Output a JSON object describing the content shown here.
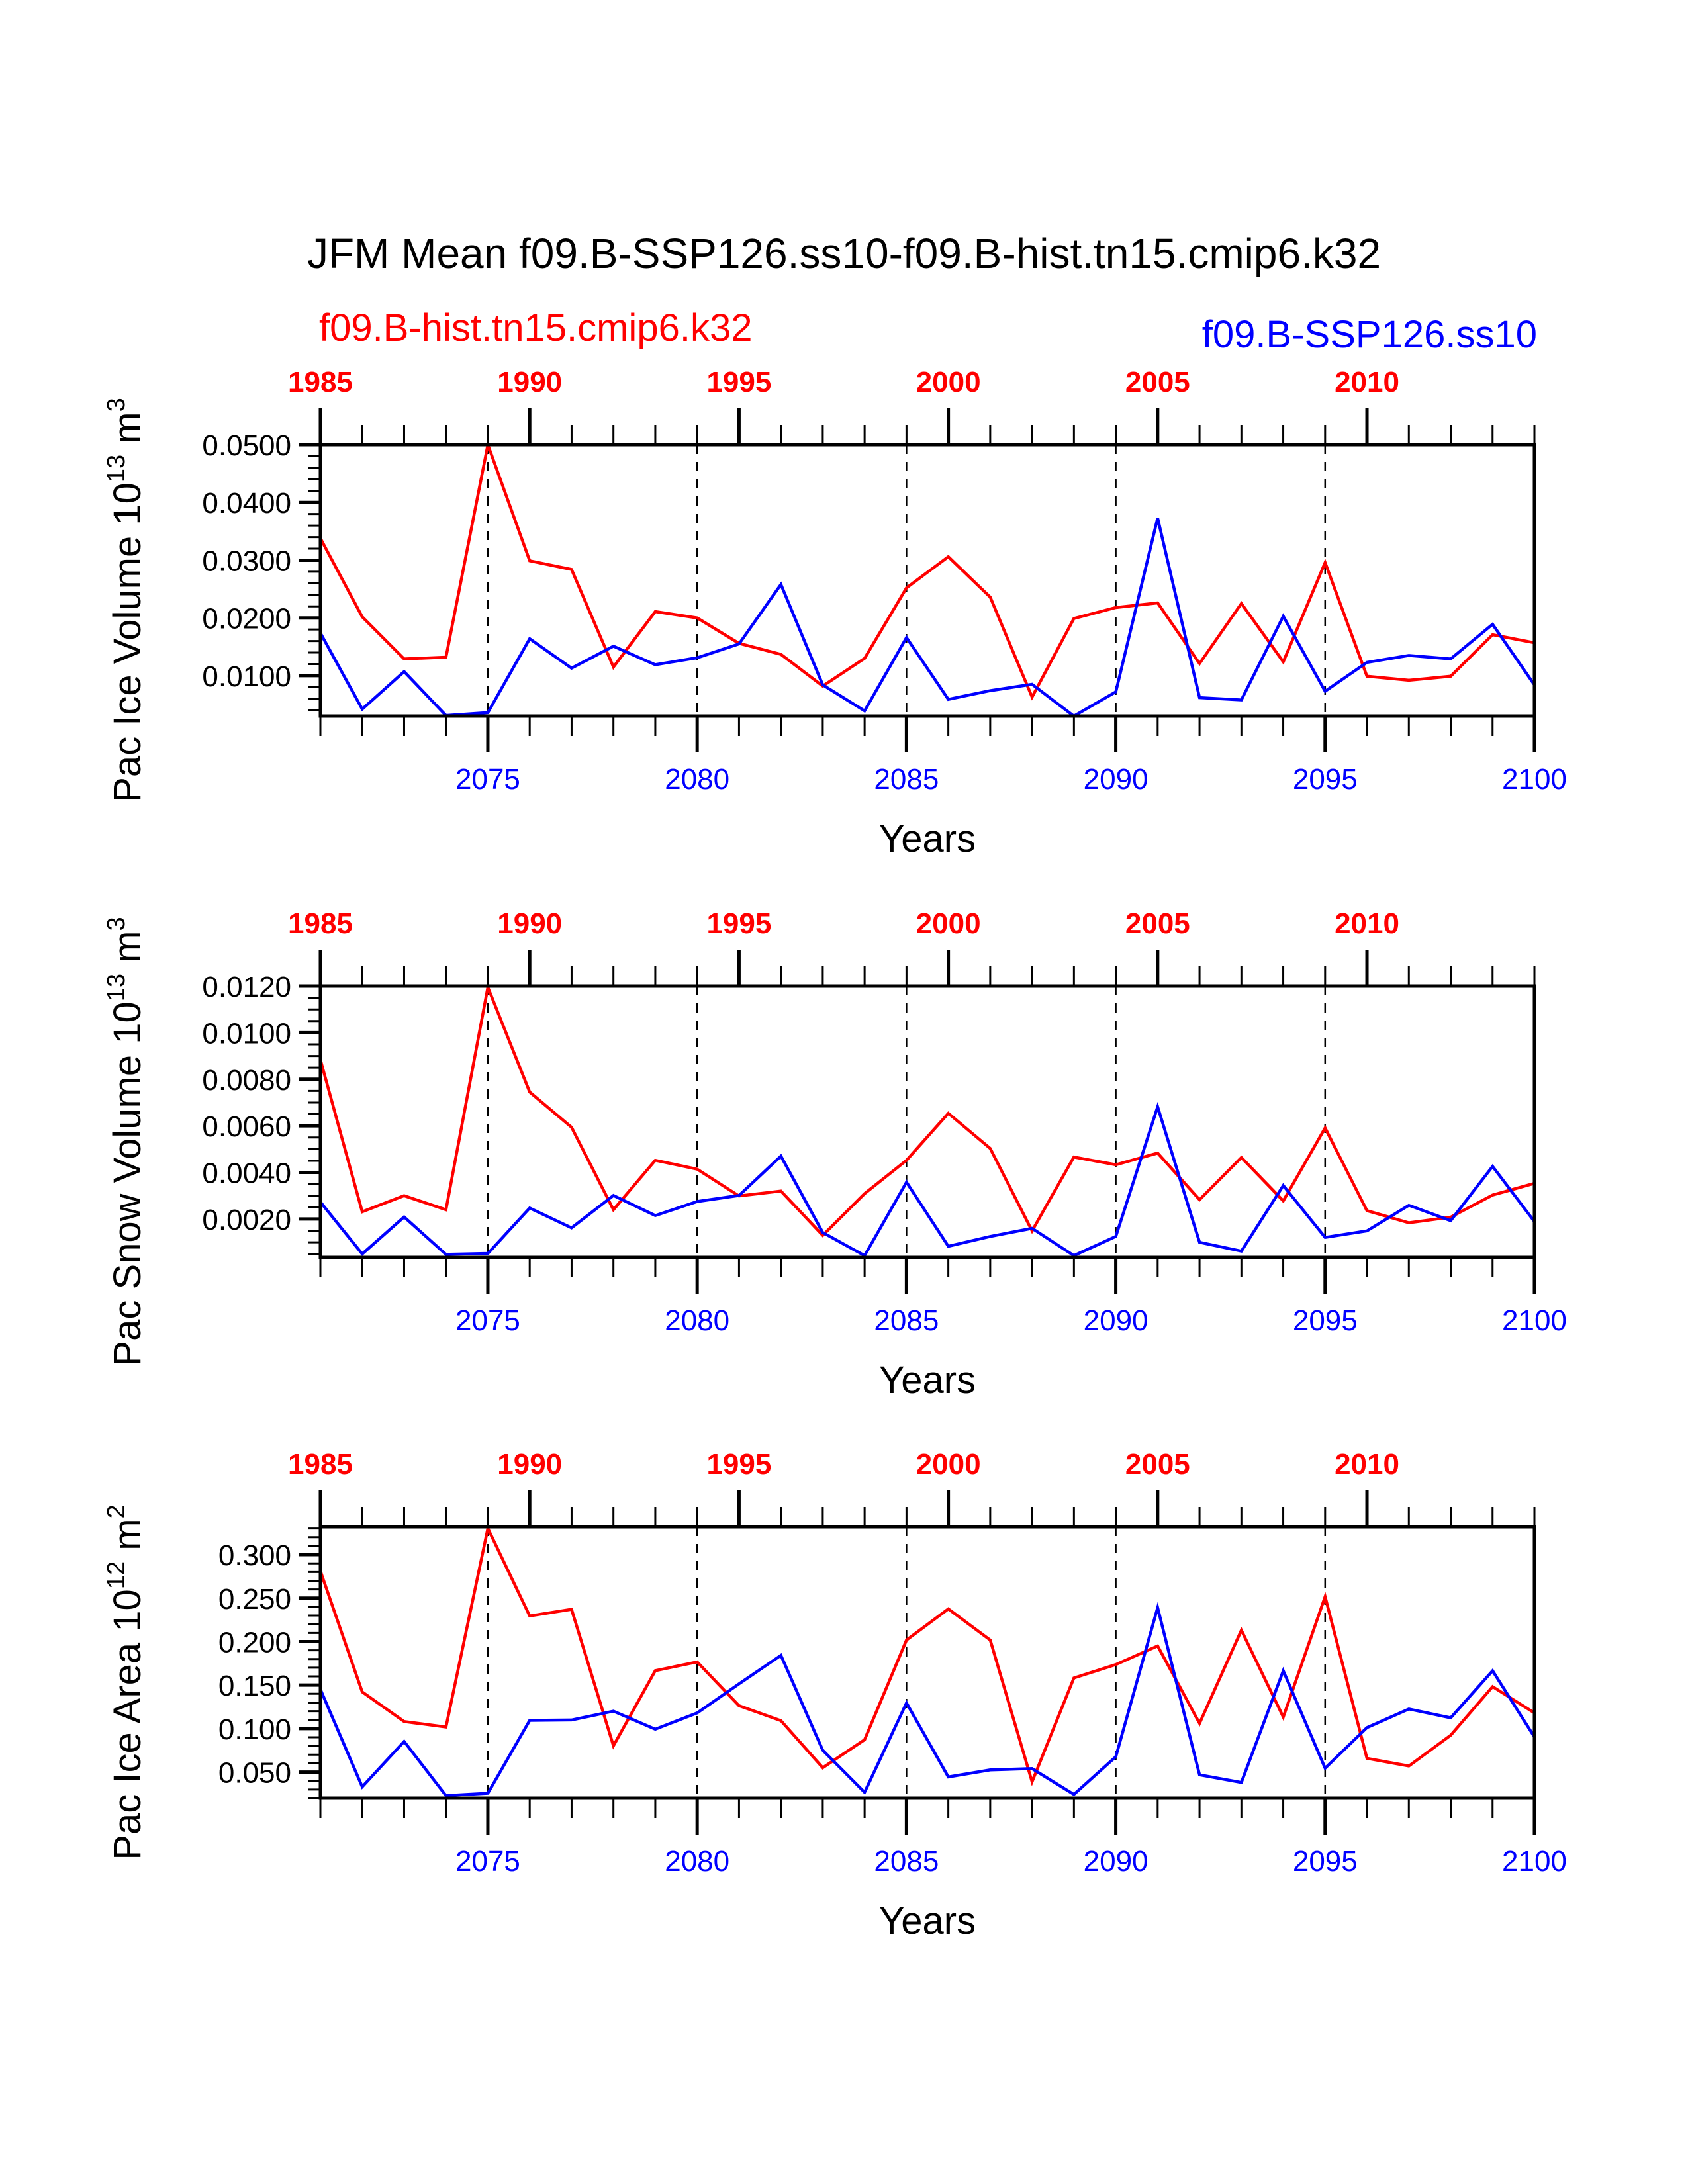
{
  "chart_data": {
    "title": "JFM Mean f09.B-SSP126.ss10-f09.B-hist.tn15.cmip6.k32",
    "legend": {
      "left_label": "f09.B-hist.tn15.cmip6.k32",
      "right_label": "f09.B-SSP126.ss10",
      "left_color": "#ff0000",
      "right_color": "#0000ff"
    },
    "panels": [
      {
        "type": "line",
        "ylabel": "Pac Ice Volume 10",
        "ylabel_exp": "13",
        "ylabel_unit": " m",
        "ylabel_unit_exp": "3",
        "xlabel": "Years",
        "ylim": [
          0.003,
          0.05
        ],
        "yticks": [
          0.01,
          0.02,
          0.03,
          0.04,
          0.05
        ],
        "ytick_labels": [
          "0.0100",
          "0.0200",
          "0.0300",
          "0.0400",
          "0.0500"
        ],
        "yminor_step": 0.002,
        "series": [
          {
            "name": "f09.B-hist.tn15.cmip6.k32",
            "color": "#ff0000",
            "values": [
              0.0338,
              0.0202,
              0.0129,
              0.0132,
              0.05,
              0.0299,
              0.0284,
              0.0115,
              0.0211,
              0.02,
              0.0156,
              0.0137,
              0.0082,
              0.013,
              0.0252,
              0.0306,
              0.0236,
              0.0063,
              0.0199,
              0.0218,
              0.0226,
              0.0121,
              0.0225,
              0.0124,
              0.0296,
              0.0099,
              0.0092,
              0.0099,
              0.0171,
              0.0157
            ]
          },
          {
            "name": "f09.B-SSP126.ss10",
            "color": "#0000ff",
            "values": [
              0.0174,
              0.0042,
              0.0107,
              0.0031,
              0.0036,
              0.0164,
              0.0113,
              0.0151,
              0.0119,
              0.0131,
              0.0155,
              0.0258,
              0.0084,
              0.0039,
              0.0166,
              0.0059,
              0.0074,
              0.0085,
              0.003,
              0.0072,
              0.0373,
              0.0062,
              0.0058,
              0.0203,
              0.0073,
              0.0123,
              0.0135,
              0.0129,
              0.0189,
              0.0084
            ]
          }
        ]
      },
      {
        "type": "line",
        "ylabel": "Pac Snow Volume 10",
        "ylabel_exp": "13",
        "ylabel_unit": " m",
        "ylabel_unit_exp": "3",
        "xlabel": "Years",
        "ylim": [
          0.00035,
          0.012
        ],
        "yticks": [
          0.002,
          0.004,
          0.006,
          0.008,
          0.01,
          0.012
        ],
        "ytick_labels": [
          "0.0020",
          "0.0040",
          "0.0060",
          "0.0080",
          "0.0100",
          "0.0120"
        ],
        "yminor_step": 0.0005,
        "series": [
          {
            "name": "f09.B-hist.tn15.cmip6.k32",
            "color": "#ff0000",
            "values": [
              0.00884,
              0.00231,
              0.003,
              0.0024,
              0.01195,
              0.00745,
              0.00594,
              0.0024,
              0.00452,
              0.00414,
              0.00299,
              0.0032,
              0.0013,
              0.00309,
              0.00452,
              0.00654,
              0.00503,
              0.00149,
              0.00466,
              0.00433,
              0.00483,
              0.00283,
              0.00464,
              0.00278,
              0.00591,
              0.00236,
              0.00184,
              0.00208,
              0.00303,
              0.00353
            ]
          },
          {
            "name": "f09.B-SSP126.ss10",
            "color": "#0000ff",
            "values": [
              0.00273,
              0.0005,
              0.00209,
              0.00048,
              0.00052,
              0.00247,
              0.00162,
              0.00301,
              0.00215,
              0.00275,
              0.00301,
              0.0047,
              0.00142,
              0.00043,
              0.00358,
              0.00083,
              0.00125,
              0.0016,
              0.00043,
              0.00125,
              0.00682,
              0.001,
              0.00062,
              0.00344,
              0.00121,
              0.00149,
              0.00259,
              0.00193,
              0.00426,
              0.00189
            ]
          }
        ]
      },
      {
        "type": "line",
        "ylabel": "Pac Ice Area 10",
        "ylabel_exp": "12",
        "ylabel_unit": " m",
        "ylabel_unit_exp": "2",
        "xlabel": "Years",
        "ylim": [
          0.02,
          0.332
        ],
        "yticks": [
          0.05,
          0.1,
          0.15,
          0.2,
          0.25,
          0.3
        ],
        "ytick_labels": [
          "0.050",
          "0.100",
          "0.150",
          "0.200",
          "0.250",
          "0.300"
        ],
        "yminor_step": 0.01,
        "series": [
          {
            "name": "f09.B-hist.tn15.cmip6.k32",
            "color": "#ff0000",
            "values": [
              0.2811,
              0.1421,
              0.1081,
              0.1018,
              0.3302,
              0.2295,
              0.2371,
              0.0802,
              0.1666,
              0.1766,
              0.1263,
              0.1091,
              0.055,
              0.0872,
              0.2018,
              0.2376,
              0.2018,
              0.0389,
              0.1582,
              0.1736,
              0.195,
              0.1061,
              0.2131,
              0.1132,
              0.2517,
              0.0658,
              0.057,
              0.0923,
              0.1482,
              0.118
            ]
          },
          {
            "name": "f09.B-SSP126.ss10",
            "color": "#0000ff",
            "values": [
              0.1451,
              0.0331,
              0.0852,
              0.023,
              0.0256,
              0.1094,
              0.1099,
              0.12,
              0.0993,
              0.118,
              0.1514,
              0.1842,
              0.0751,
              0.0268,
              0.1295,
              0.0444,
              0.0525,
              0.054,
              0.0243,
              0.0676,
              0.2391,
              0.0469,
              0.0381,
              0.1665,
              0.0545,
              0.1011,
              0.1225,
              0.1124,
              0.1665,
              0.0903
            ]
          }
        ]
      }
    ],
    "x_bottom": {
      "years": [
        2071,
        2072,
        2073,
        2074,
        2075,
        2076,
        2077,
        2078,
        2079,
        2080,
        2081,
        2082,
        2083,
        2084,
        2085,
        2086,
        2087,
        2088,
        2089,
        2090,
        2091,
        2092,
        2093,
        2094,
        2095,
        2096,
        2097,
        2098,
        2099,
        2100
      ],
      "xlim": [
        2071,
        2100
      ],
      "tick_labels": [
        "2075",
        "2080",
        "2085",
        "2090",
        "2095",
        "2100"
      ],
      "tick_values": [
        2075,
        2080,
        2085,
        2090,
        2095,
        2100
      ]
    },
    "x_top": {
      "xlim": [
        1985,
        2014
      ],
      "tick_labels": [
        "1985",
        "1990",
        "1995",
        "2000",
        "2005",
        "2010"
      ],
      "tick_values": [
        1985,
        1990,
        1995,
        2000,
        2005,
        2010
      ]
    },
    "dashed_gridlines_at": [
      2075,
      2080,
      2085,
      2090,
      2095
    ],
    "grid": false
  }
}
